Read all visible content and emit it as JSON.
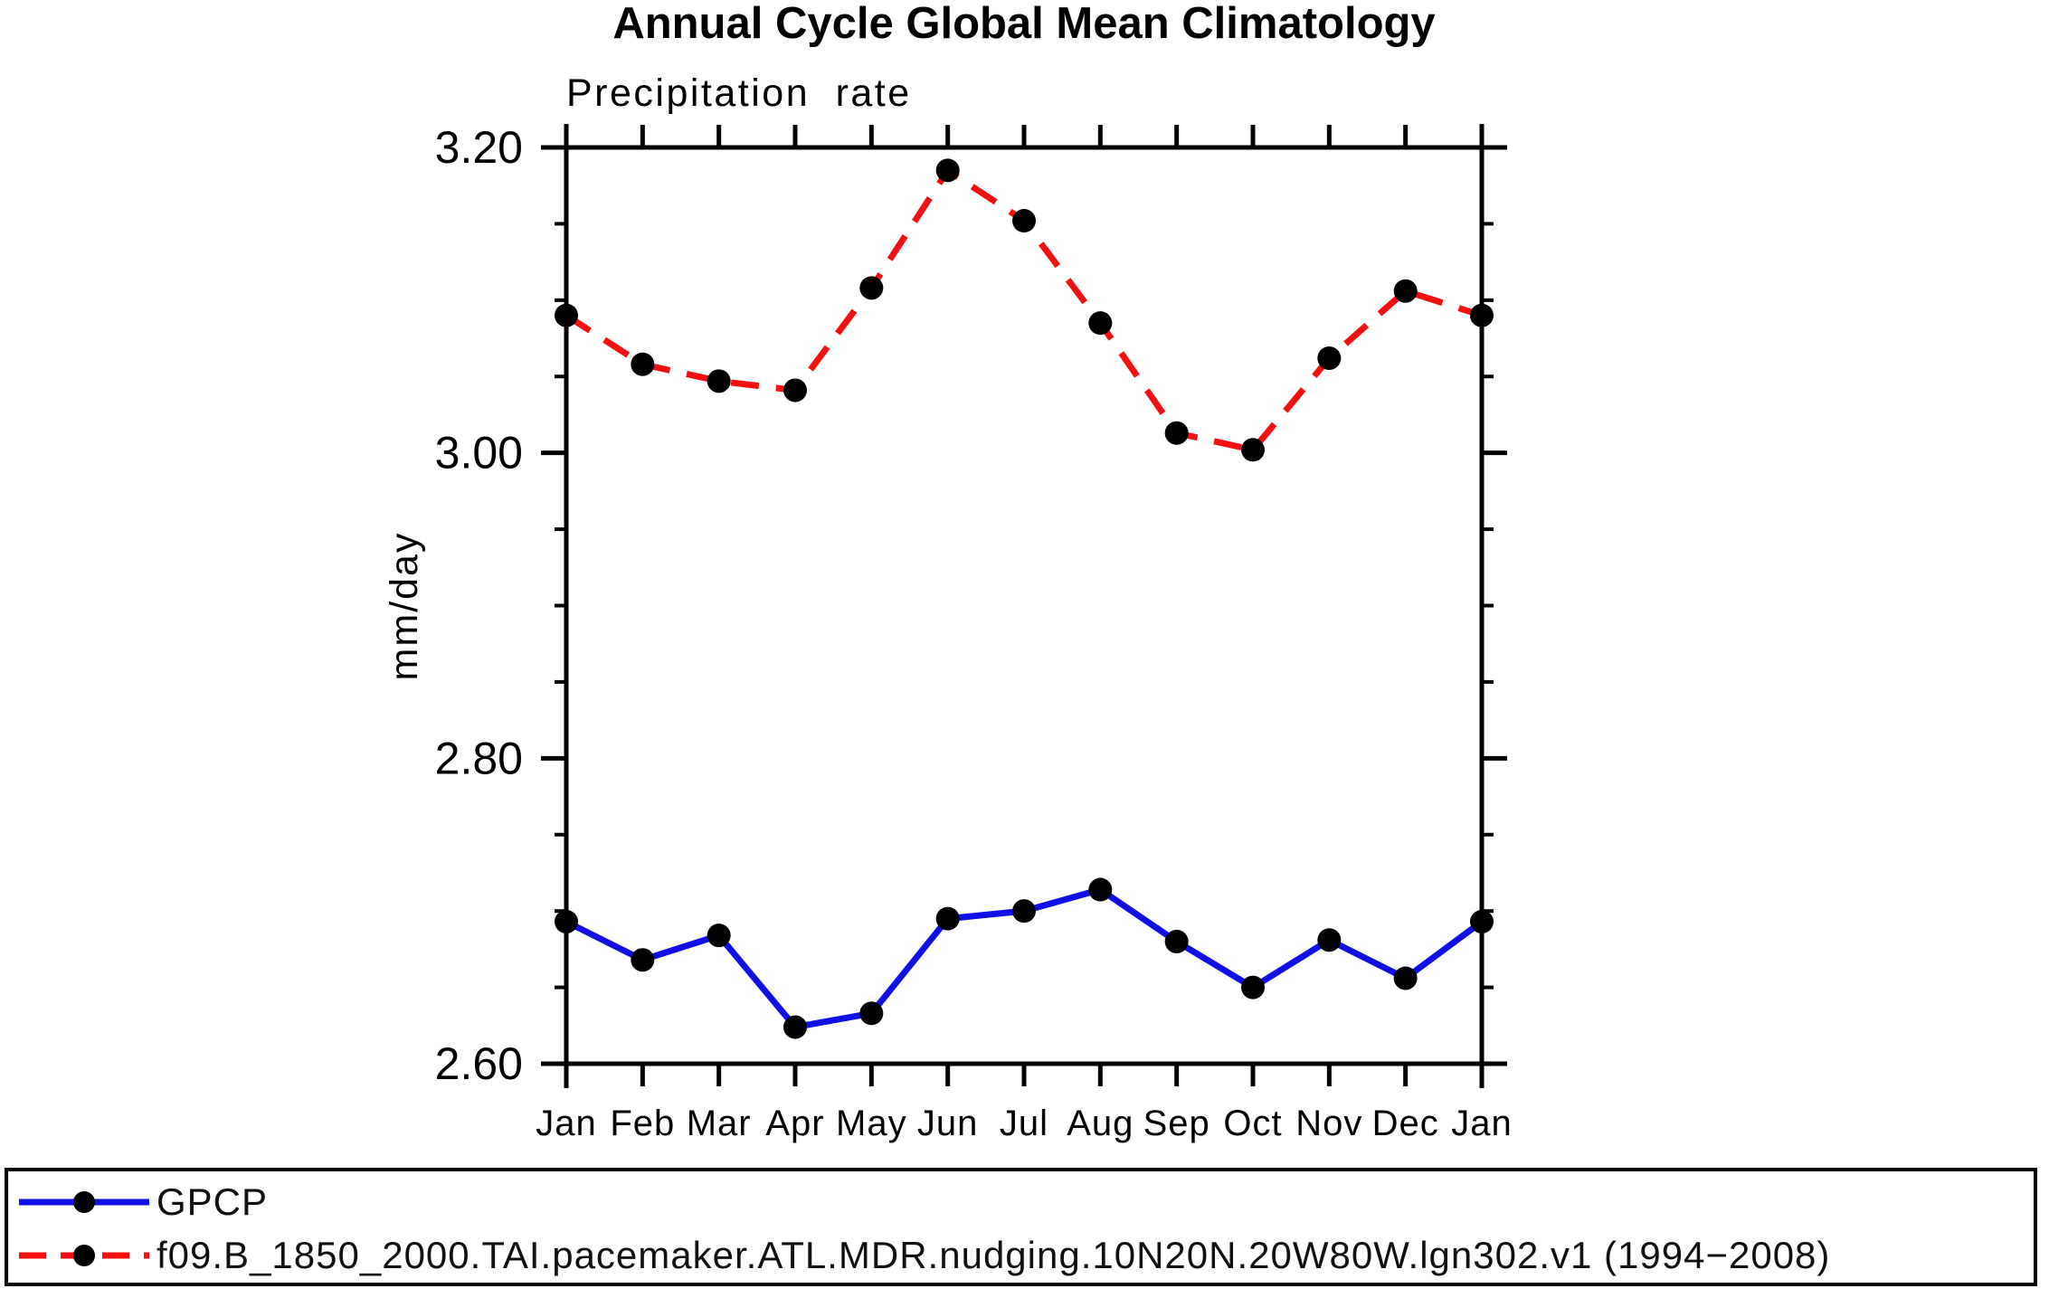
{
  "title": "Annual Cycle Global Mean Climatology",
  "subtitle": "Precipitation rate",
  "chart_data": {
    "type": "line",
    "title": "Annual Cycle Global Mean Climatology",
    "subtitle": "Precipitation rate",
    "xlabel": "",
    "ylabel": "mm/day",
    "categories": [
      "Jan",
      "Feb",
      "Mar",
      "Apr",
      "May",
      "Jun",
      "Jul",
      "Aug",
      "Sep",
      "Oct",
      "Nov",
      "Dec",
      "Jan"
    ],
    "series": [
      {
        "name": "GPCP",
        "color": "#1010e6",
        "line_style": "solid",
        "marker": "filled-circle",
        "marker_color": "#000000",
        "values": [
          2.693,
          2.668,
          2.684,
          2.624,
          2.633,
          2.695,
          2.7,
          2.714,
          2.68,
          2.65,
          2.681,
          2.656,
          2.693
        ]
      },
      {
        "name": "f09.B_1850_2000.TAI.pacemaker.ATL.MDR.nudging.10N20N.20W80W.lgn302.v1 (1994−2008)",
        "color": "#f21010",
        "line_style": "dashed",
        "marker": "filled-circle",
        "marker_color": "#000000",
        "values": [
          3.09,
          3.058,
          3.047,
          3.041,
          3.108,
          3.185,
          3.152,
          3.085,
          3.013,
          3.002,
          3.062,
          3.106,
          3.09
        ]
      }
    ],
    "ylim": [
      2.6,
      3.2
    ],
    "yticks_major": [
      2.6,
      2.8,
      3.0,
      3.2
    ],
    "ytick_labels": [
      "2.60",
      "2.80",
      "3.00",
      "3.20"
    ],
    "ytick_minor_step": 0.05,
    "grid": false,
    "axis_color": "#000000",
    "text_color": "#000000",
    "legend_position": "bottom-box"
  }
}
